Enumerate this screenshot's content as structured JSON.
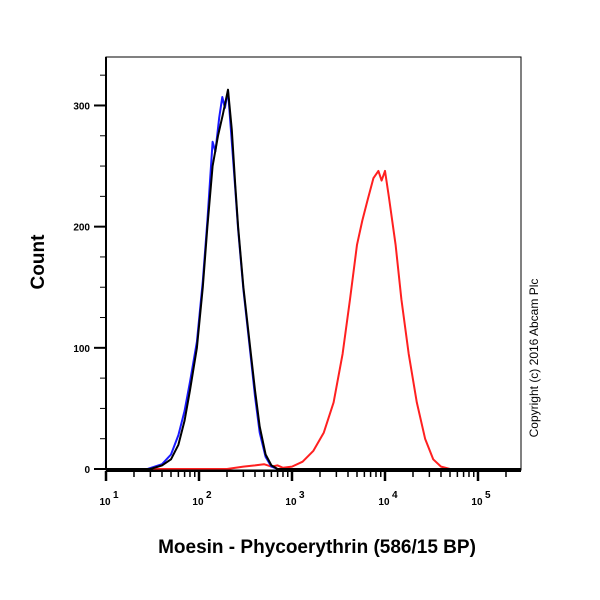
{
  "chart_data": {
    "type": "line",
    "title": "",
    "xlabel": "Moesin - Phycoerythrin (586/15 BP)",
    "ylabel": "Count",
    "x_scale": "log",
    "xlim": [
      10,
      290000
    ],
    "ylim": [
      0,
      340
    ],
    "x_ticks": [
      {
        "base": "10",
        "exp": "1",
        "value": 10
      },
      {
        "base": "10",
        "exp": "2",
        "value": 100
      },
      {
        "base": "10",
        "exp": "3",
        "value": 1000
      },
      {
        "base": "10",
        "exp": "4",
        "value": 10000
      },
      {
        "base": "10",
        "exp": "5",
        "value": 100000
      }
    ],
    "y_ticks": [
      "0",
      "100",
      "200",
      "300"
    ],
    "y_tick_values": [
      0,
      100,
      200,
      300
    ],
    "grid": false,
    "annotation": "Copyright (c) 2016 Abcam Plc",
    "series": [
      {
        "color": "#ff2020",
        "x": [
          10,
          200,
          300,
          400,
          500,
          600,
          700,
          800,
          1000,
          1300,
          1700,
          2200,
          2800,
          3500,
          4200,
          5000,
          5700,
          6500,
          7500,
          8500,
          9200,
          10000,
          11000,
          13000,
          15000,
          18000,
          22000,
          27000,
          33000,
          40000,
          50000,
          290000
        ],
        "y": [
          0,
          0,
          2,
          3,
          4,
          2,
          3,
          1,
          2,
          6,
          15,
          30,
          55,
          95,
          140,
          185,
          205,
          222,
          240,
          246,
          238,
          246,
          225,
          185,
          140,
          95,
          55,
          25,
          8,
          2,
          0,
          0
        ]
      },
      {
        "color": "#1a1aff",
        "x": [
          10,
          28,
          40,
          50,
          60,
          70,
          80,
          95,
          110,
          123,
          140,
          150,
          165,
          178,
          190,
          205,
          225,
          245,
          263,
          300,
          355,
          400,
          450,
          520,
          600,
          700,
          290000
        ],
        "y": [
          0,
          0,
          4,
          12,
          28,
          48,
          72,
          105,
          155,
          205,
          270,
          262,
          290,
          307,
          298,
          312,
          270,
          232,
          198,
          148,
          97,
          60,
          30,
          10,
          2,
          0,
          0
        ]
      },
      {
        "color": "#000000",
        "x": [
          10,
          30,
          40,
          50,
          60,
          70,
          80,
          95,
          110,
          123,
          140,
          160,
          180,
          205,
          225,
          245,
          263,
          300,
          355,
          400,
          450,
          520,
          600,
          700,
          290000
        ],
        "y": [
          0,
          0,
          3,
          8,
          20,
          40,
          65,
          100,
          150,
          200,
          250,
          275,
          292,
          313,
          280,
          235,
          200,
          150,
          100,
          65,
          35,
          12,
          3,
          0,
          0
        ]
      }
    ]
  }
}
